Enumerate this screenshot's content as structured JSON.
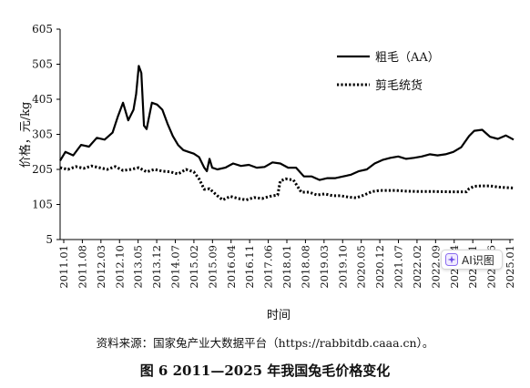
{
  "chart_data": {
    "type": "line",
    "title": "",
    "xlabel": "时间",
    "ylabel": "价格，元/kg",
    "ylim": [
      5,
      605
    ],
    "yticks": [
      5,
      105,
      205,
      305,
      405,
      505,
      605
    ],
    "grid": false,
    "legend_position": "top-right",
    "x_start": "2011-01",
    "x_end": "2025-06",
    "xtick_labels": [
      "2011.01",
      "2011.08",
      "2012.03",
      "2012.10",
      "2013.05",
      "2013.12",
      "2014.07",
      "2015.02",
      "2015.09",
      "2016.04",
      "2016.11",
      "2017.06",
      "2018.01",
      "2018.08",
      "2019.03",
      "2019.10",
      "2020.05",
      "2020.12",
      "2021.07",
      "2022.02",
      "2022.09",
      "2023.04",
      "2023.11",
      "2024.06",
      "2025.01"
    ],
    "series": [
      {
        "name": "粗毛（AA）",
        "style": "solid",
        "color": "#000000",
        "points": [
          [
            "2011-01",
            230
          ],
          [
            "2011-03",
            255
          ],
          [
            "2011-06",
            245
          ],
          [
            "2011-09",
            275
          ],
          [
            "2011-12",
            270
          ],
          [
            "2012-03",
            295
          ],
          [
            "2012-06",
            290
          ],
          [
            "2012-09",
            310
          ],
          [
            "2012-11",
            355
          ],
          [
            "2013-01",
            395
          ],
          [
            "2013-03",
            345
          ],
          [
            "2013-05",
            375
          ],
          [
            "2013-06",
            420
          ],
          [
            "2013-07",
            500
          ],
          [
            "2013-08",
            480
          ],
          [
            "2013-09",
            330
          ],
          [
            "2013-10",
            320
          ],
          [
            "2013-12",
            395
          ],
          [
            "2014-02",
            390
          ],
          [
            "2014-04",
            375
          ],
          [
            "2014-06",
            335
          ],
          [
            "2014-08",
            300
          ],
          [
            "2014-10",
            275
          ],
          [
            "2014-12",
            260
          ],
          [
            "2015-02",
            255
          ],
          [
            "2015-04",
            250
          ],
          [
            "2015-06",
            240
          ],
          [
            "2015-08",
            210
          ],
          [
            "2015-09",
            200
          ],
          [
            "2015-10",
            235
          ],
          [
            "2015-11",
            210
          ],
          [
            "2016-01",
            205
          ],
          [
            "2016-04",
            210
          ],
          [
            "2016-07",
            222
          ],
          [
            "2016-10",
            215
          ],
          [
            "2017-01",
            218
          ],
          [
            "2017-04",
            210
          ],
          [
            "2017-07",
            212
          ],
          [
            "2017-10",
            225
          ],
          [
            "2018-01",
            222
          ],
          [
            "2018-04",
            210
          ],
          [
            "2018-07",
            210
          ],
          [
            "2018-10",
            185
          ],
          [
            "2019-01",
            185
          ],
          [
            "2019-04",
            175
          ],
          [
            "2019-07",
            180
          ],
          [
            "2019-10",
            180
          ],
          [
            "2020-01",
            185
          ],
          [
            "2020-04",
            190
          ],
          [
            "2020-07",
            200
          ],
          [
            "2020-10",
            205
          ],
          [
            "2021-01",
            222
          ],
          [
            "2021-04",
            232
          ],
          [
            "2021-07",
            238
          ],
          [
            "2021-10",
            242
          ],
          [
            "2022-01",
            235
          ],
          [
            "2022-04",
            238
          ],
          [
            "2022-07",
            242
          ],
          [
            "2022-10",
            248
          ],
          [
            "2023-01",
            245
          ],
          [
            "2023-04",
            248
          ],
          [
            "2023-07",
            255
          ],
          [
            "2023-10",
            268
          ],
          [
            "2024-01",
            300
          ],
          [
            "2024-03",
            315
          ],
          [
            "2024-06",
            318
          ],
          [
            "2024-09",
            298
          ],
          [
            "2024-12",
            292
          ],
          [
            "2025-03",
            302
          ],
          [
            "2025-06",
            290
          ]
        ]
      },
      {
        "name": "剪毛统货",
        "style": "dotted",
        "color": "#000000",
        "points": [
          [
            "2011-01",
            210
          ],
          [
            "2011-04",
            205
          ],
          [
            "2011-07",
            213
          ],
          [
            "2011-10",
            208
          ],
          [
            "2012-01",
            215
          ],
          [
            "2012-04",
            210
          ],
          [
            "2012-07",
            205
          ],
          [
            "2012-10",
            213
          ],
          [
            "2013-01",
            202
          ],
          [
            "2013-04",
            205
          ],
          [
            "2013-07",
            210
          ],
          [
            "2013-10",
            198
          ],
          [
            "2014-01",
            205
          ],
          [
            "2014-04",
            200
          ],
          [
            "2014-07",
            198
          ],
          [
            "2014-10",
            192
          ],
          [
            "2015-01",
            205
          ],
          [
            "2015-04",
            198
          ],
          [
            "2015-06",
            178
          ],
          [
            "2015-08",
            148
          ],
          [
            "2015-10",
            150
          ],
          [
            "2016-01",
            130
          ],
          [
            "2016-03",
            118
          ],
          [
            "2016-06",
            128
          ],
          [
            "2016-09",
            122
          ],
          [
            "2016-12",
            118
          ],
          [
            "2017-03",
            125
          ],
          [
            "2017-06",
            122
          ],
          [
            "2017-09",
            128
          ],
          [
            "2017-12",
            132
          ],
          [
            "2018-01",
            172
          ],
          [
            "2018-03",
            178
          ],
          [
            "2018-06",
            175
          ],
          [
            "2018-09",
            140
          ],
          [
            "2018-12",
            140
          ],
          [
            "2019-03",
            132
          ],
          [
            "2019-06",
            135
          ],
          [
            "2019-09",
            130
          ],
          [
            "2019-12",
            130
          ],
          [
            "2020-03",
            126
          ],
          [
            "2020-06",
            124
          ],
          [
            "2020-09",
            132
          ],
          [
            "2020-12",
            142
          ],
          [
            "2021-03",
            145
          ],
          [
            "2021-06",
            145
          ],
          [
            "2021-09",
            145
          ],
          [
            "2022-01",
            143
          ],
          [
            "2022-06",
            142
          ],
          [
            "2022-12",
            142
          ],
          [
            "2023-06",
            141
          ],
          [
            "2023-12",
            141
          ],
          [
            "2024-01",
            150
          ],
          [
            "2024-03",
            157
          ],
          [
            "2024-06",
            158
          ],
          [
            "2024-09",
            158
          ],
          [
            "2024-12",
            155
          ],
          [
            "2025-03",
            153
          ],
          [
            "2025-06",
            152
          ]
        ]
      }
    ],
    "source_note": "资料来源：国家兔产业大数据平台（https://rabbitdb.caaa.cn）。",
    "figure_caption": "图 6 2011—2025 年我国兔毛价格变化"
  },
  "overlay": {
    "ai_button_label": "AI识图",
    "ai_icon": "ai-sparkle-icon"
  }
}
